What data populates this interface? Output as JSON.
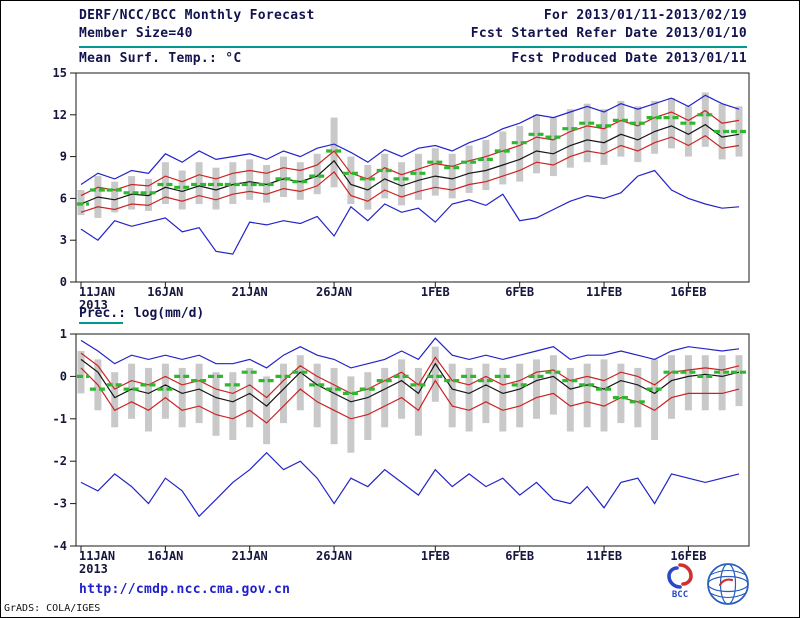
{
  "header": {
    "title": "DERF/NCC/BCC Monthly Forecast",
    "for_range": "For 2013/01/11-2013/02/19",
    "member_size": "Member Size=40",
    "fcst_started": "Fcst Started Refer Date 2013/01/10",
    "fcst_produced": "Fcst Produced Date 2013/01/11"
  },
  "footer": {
    "url": "http://cmdp.ncc.cma.gov.cn",
    "credit": "GrADS: COLA/IGES",
    "bcc_label": "BCC"
  },
  "colors": {
    "blue": "#2323c8",
    "red": "#cc2222",
    "black": "#151515",
    "green": "#2db82d",
    "bar": "#c9c9c9",
    "axis": "#1a1a1a",
    "teal": "#009a92",
    "url": "#2020cc"
  },
  "chart_data": [
    {
      "type": "line",
      "title": "Mean Surf. Temp.: °C",
      "ylim": [
        0,
        15
      ],
      "yticks": [
        0,
        3,
        6,
        9,
        12,
        15
      ],
      "n": 40,
      "x_ticks": [
        {
          "day": 0,
          "label": "11JAN",
          "sub": "2013"
        },
        {
          "day": 5,
          "label": "16JAN"
        },
        {
          "day": 10,
          "label": "21JAN"
        },
        {
          "day": 15,
          "label": "26JAN"
        },
        {
          "day": 21,
          "label": "1FEB"
        },
        {
          "day": 26,
          "label": "6FEB"
        },
        {
          "day": 31,
          "label": "11FEB"
        },
        {
          "day": 36,
          "label": "16FEB"
        }
      ],
      "bars": {
        "low": [
          4.8,
          4.6,
          5.0,
          5.2,
          5.1,
          5.6,
          5.2,
          5.6,
          5.2,
          5.6,
          5.9,
          5.7,
          6.1,
          5.9,
          6.3,
          6.8,
          5.6,
          5.2,
          6.0,
          5.5,
          5.9,
          6.2,
          6.0,
          6.4,
          6.6,
          7.0,
          7.2,
          7.8,
          7.6,
          8.2,
          8.6,
          8.4,
          9.0,
          8.6,
          9.2,
          9.6,
          9.0,
          9.7,
          8.8,
          9.0
        ],
        "high": [
          6.6,
          7.6,
          7.2,
          7.6,
          7.4,
          8.6,
          8.0,
          8.6,
          8.2,
          8.6,
          8.8,
          8.4,
          9.0,
          8.6,
          9.2,
          11.8,
          9.0,
          8.4,
          9.2,
          8.6,
          9.2,
          9.6,
          9.2,
          9.8,
          10.2,
          10.8,
          11.2,
          12.0,
          11.8,
          12.4,
          12.8,
          12.4,
          13.0,
          12.6,
          13.0,
          13.2,
          12.6,
          13.6,
          12.8,
          12.6
        ]
      },
      "green": [
        5.6,
        6.6,
        6.6,
        6.4,
        6.4,
        7.0,
        6.8,
        7.0,
        7.0,
        7.0,
        7.0,
        7.0,
        7.4,
        7.2,
        7.6,
        9.4,
        7.8,
        7.4,
        8.0,
        7.4,
        7.8,
        8.6,
        8.2,
        8.6,
        8.8,
        9.4,
        10.0,
        10.6,
        10.4,
        11.0,
        11.4,
        11.2,
        11.6,
        11.4,
        11.8,
        11.8,
        11.4,
        12.0,
        10.8,
        10.8
      ],
      "series": [
        {
          "name": "ensemble-max",
          "color": "blue",
          "values": [
            7.0,
            7.8,
            7.4,
            8.0,
            7.8,
            9.2,
            8.6,
            9.4,
            8.8,
            9.0,
            9.2,
            8.8,
            9.4,
            9.0,
            9.6,
            9.9,
            9.3,
            8.6,
            9.5,
            9.0,
            9.6,
            9.8,
            9.4,
            10.0,
            10.4,
            11.0,
            11.4,
            12.0,
            11.8,
            12.2,
            12.6,
            12.2,
            12.8,
            12.4,
            12.8,
            13.2,
            12.6,
            13.4,
            12.8,
            12.4
          ]
        },
        {
          "name": "upper-quartile",
          "color": "red",
          "values": [
            6.2,
            6.8,
            6.6,
            7.0,
            6.9,
            7.6,
            7.2,
            7.7,
            7.4,
            7.8,
            8.0,
            7.8,
            8.2,
            8.0,
            8.4,
            9.4,
            7.8,
            7.4,
            8.2,
            7.7,
            8.1,
            8.5,
            8.3,
            8.7,
            9.0,
            9.4,
            9.8,
            10.4,
            10.2,
            10.8,
            11.2,
            11.0,
            11.6,
            11.2,
            11.8,
            12.2,
            11.6,
            12.3,
            11.4,
            11.6
          ]
        },
        {
          "name": "ensemble-mean",
          "color": "black",
          "values": [
            5.6,
            6.1,
            5.9,
            6.3,
            6.2,
            6.8,
            6.5,
            6.9,
            6.6,
            7.0,
            7.2,
            7.0,
            7.4,
            7.2,
            7.6,
            8.7,
            7.0,
            6.6,
            7.4,
            6.9,
            7.3,
            7.6,
            7.4,
            7.8,
            8.0,
            8.4,
            8.8,
            9.4,
            9.2,
            9.8,
            10.2,
            10.0,
            10.6,
            10.2,
            10.8,
            11.2,
            10.6,
            11.3,
            10.4,
            10.6
          ]
        },
        {
          "name": "lower-quartile",
          "color": "red",
          "values": [
            5.0,
            5.4,
            5.2,
            5.6,
            5.5,
            6.1,
            5.8,
            6.2,
            5.9,
            6.3,
            6.5,
            6.3,
            6.7,
            6.5,
            6.9,
            7.9,
            6.2,
            5.8,
            6.6,
            6.1,
            6.5,
            6.8,
            6.6,
            7.0,
            7.2,
            7.6,
            8.0,
            8.6,
            8.4,
            9.0,
            9.4,
            9.2,
            9.8,
            9.4,
            10.0,
            10.4,
            9.8,
            10.5,
            9.6,
            9.8
          ]
        },
        {
          "name": "ensemble-min",
          "color": "blue",
          "values": [
            3.8,
            3.0,
            4.4,
            4.0,
            4.3,
            4.6,
            3.6,
            3.9,
            2.2,
            2.0,
            4.3,
            4.1,
            4.4,
            4.2,
            4.7,
            3.3,
            5.4,
            4.4,
            5.6,
            5.0,
            5.3,
            4.3,
            5.6,
            5.9,
            5.5,
            6.3,
            4.4,
            4.6,
            5.2,
            5.8,
            6.2,
            6.0,
            6.4,
            7.6,
            8.0,
            6.6,
            6.0,
            5.6,
            5.3,
            5.4
          ]
        }
      ]
    },
    {
      "type": "line",
      "title": "Prec.: log(mm/d)",
      "ylim": [
        -4,
        1
      ],
      "yticks": [
        -4,
        -3,
        -2,
        -1,
        0,
        1
      ],
      "n": 40,
      "x_ticks": [
        {
          "day": 0,
          "label": "11JAN",
          "sub": "2013"
        },
        {
          "day": 5,
          "label": "16JAN"
        },
        {
          "day": 10,
          "label": "21JAN"
        },
        {
          "day": 15,
          "label": "26JAN"
        },
        {
          "day": 21,
          "label": "1FEB"
        },
        {
          "day": 26,
          "label": "6FEB"
        },
        {
          "day": 31,
          "label": "11FEB"
        },
        {
          "day": 36,
          "label": "16FEB"
        }
      ],
      "bars": {
        "low": [
          -0.4,
          -0.8,
          -1.2,
          -1.0,
          -1.3,
          -1.0,
          -1.2,
          -1.1,
          -1.4,
          -1.5,
          -1.2,
          -1.6,
          -1.1,
          -0.8,
          -1.2,
          -1.6,
          -1.8,
          -1.5,
          -1.2,
          -1.0,
          -1.4,
          -0.6,
          -1.2,
          -1.3,
          -1.1,
          -1.3,
          -1.2,
          -1.0,
          -0.9,
          -1.3,
          -1.2,
          -1.3,
          -1.1,
          -1.2,
          -1.5,
          -1.0,
          -0.8,
          -0.8,
          -0.8,
          -0.7
        ],
        "high": [
          0.6,
          0.4,
          0.1,
          0.3,
          0.2,
          0.3,
          0.2,
          0.3,
          0.1,
          0.1,
          0.2,
          0.0,
          0.3,
          0.5,
          0.3,
          0.2,
          0.0,
          0.1,
          0.2,
          0.4,
          0.2,
          0.7,
          0.3,
          0.2,
          0.3,
          0.2,
          0.3,
          0.4,
          0.5,
          0.2,
          0.3,
          0.4,
          0.3,
          0.2,
          0.4,
          0.5,
          0.5,
          0.5,
          0.5,
          0.5
        ]
      },
      "green": [
        0.0,
        -0.3,
        -0.2,
        -0.3,
        -0.2,
        -0.3,
        0.0,
        -0.1,
        0.0,
        -0.2,
        0.1,
        -0.1,
        0.0,
        0.1,
        -0.2,
        -0.3,
        -0.4,
        -0.3,
        -0.1,
        0.0,
        -0.2,
        0.0,
        -0.1,
        0.0,
        -0.1,
        0.0,
        -0.2,
        0.0,
        0.1,
        -0.1,
        -0.2,
        -0.3,
        -0.5,
        -0.6,
        -0.3,
        0.1,
        0.1,
        0.0,
        0.1,
        0.1
      ],
      "series": [
        {
          "name": "ensemble-max",
          "color": "blue",
          "values": [
            0.85,
            0.6,
            0.3,
            0.5,
            0.4,
            0.5,
            0.4,
            0.5,
            0.3,
            0.3,
            0.4,
            0.2,
            0.5,
            0.7,
            0.5,
            0.4,
            0.2,
            0.3,
            0.4,
            0.6,
            0.4,
            0.9,
            0.5,
            0.4,
            0.5,
            0.4,
            0.5,
            0.6,
            0.7,
            0.4,
            0.5,
            0.5,
            0.6,
            0.5,
            0.4,
            0.6,
            0.7,
            0.65,
            0.6,
            0.65
          ]
        },
        {
          "name": "upper-quartile",
          "color": "red",
          "values": [
            0.55,
            0.25,
            -0.3,
            -0.1,
            -0.2,
            0.0,
            -0.2,
            -0.1,
            -0.3,
            -0.4,
            -0.2,
            -0.5,
            -0.1,
            0.25,
            0.0,
            -0.2,
            -0.4,
            -0.3,
            -0.1,
            0.1,
            -0.2,
            0.45,
            -0.1,
            -0.2,
            0.0,
            -0.2,
            -0.1,
            0.1,
            0.15,
            -0.1,
            0.0,
            -0.1,
            0.1,
            0.0,
            -0.2,
            0.1,
            0.15,
            0.2,
            0.15,
            0.25
          ]
        },
        {
          "name": "ensemble-mean",
          "color": "black",
          "values": [
            0.4,
            0.1,
            -0.5,
            -0.3,
            -0.4,
            -0.2,
            -0.4,
            -0.3,
            -0.5,
            -0.6,
            -0.4,
            -0.7,
            -0.3,
            0.1,
            -0.2,
            -0.4,
            -0.6,
            -0.5,
            -0.3,
            -0.1,
            -0.4,
            0.3,
            -0.3,
            -0.4,
            -0.2,
            -0.4,
            -0.3,
            -0.1,
            0.0,
            -0.3,
            -0.2,
            -0.3,
            -0.1,
            -0.2,
            -0.4,
            -0.1,
            0.0,
            0.05,
            0.0,
            0.1
          ]
        },
        {
          "name": "lower-quartile",
          "color": "red",
          "values": [
            0.2,
            -0.2,
            -0.8,
            -0.6,
            -0.8,
            -0.5,
            -0.8,
            -0.7,
            -0.9,
            -1.0,
            -0.8,
            -1.1,
            -0.7,
            -0.3,
            -0.6,
            -0.8,
            -1.0,
            -0.9,
            -0.7,
            -0.5,
            -0.8,
            -0.1,
            -0.7,
            -0.8,
            -0.6,
            -0.8,
            -0.7,
            -0.5,
            -0.4,
            -0.7,
            -0.6,
            -0.7,
            -0.5,
            -0.6,
            -0.8,
            -0.5,
            -0.4,
            -0.4,
            -0.4,
            -0.3
          ]
        },
        {
          "name": "ensemble-min",
          "color": "blue",
          "values": [
            -2.5,
            -2.7,
            -2.3,
            -2.6,
            -3.0,
            -2.4,
            -2.7,
            -3.3,
            -2.9,
            -2.5,
            -2.2,
            -1.8,
            -2.2,
            -2.0,
            -2.4,
            -3.0,
            -2.4,
            -2.6,
            -2.2,
            -2.5,
            -2.8,
            -2.2,
            -2.6,
            -2.3,
            -2.6,
            -2.4,
            -2.8,
            -2.5,
            -2.9,
            -3.0,
            -2.6,
            -3.1,
            -2.5,
            -2.4,
            -3.0,
            -2.3,
            -2.4,
            -2.5,
            -2.4,
            -2.3
          ]
        }
      ]
    }
  ]
}
